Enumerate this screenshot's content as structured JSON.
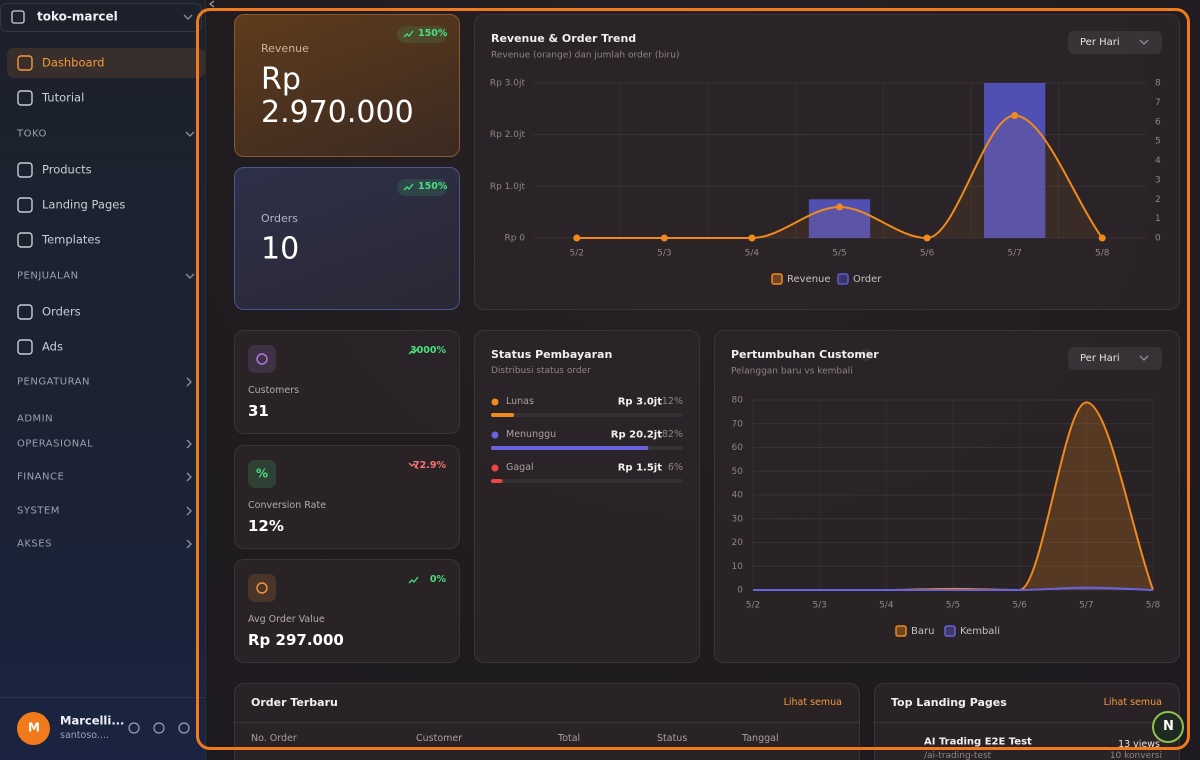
{
  "sidebar": {
    "workspace": "toko-marcel",
    "menu": [
      {
        "label": "Dashboard",
        "active": true
      },
      {
        "label": "Tutorial"
      }
    ],
    "groups": [
      {
        "title": "TOKO",
        "items": [
          "Products",
          "Landing Pages",
          "Templates"
        ]
      },
      {
        "title": "PENJUALAN",
        "items": [
          "Orders",
          "Ads"
        ]
      },
      {
        "title": "PENGATURAN"
      },
      {
        "title": "ADMIN"
      },
      {
        "title": "OPERASIONAL"
      },
      {
        "title": "FINANCE"
      },
      {
        "title": "SYSTEM"
      },
      {
        "title": "AKSES"
      }
    ],
    "user": {
      "initial": "M",
      "name": "Marcelli...",
      "email": "santoso...."
    }
  },
  "stats": {
    "revenue": {
      "label": "Revenue",
      "value": "Rp 2.970.000",
      "change": "150%"
    },
    "orders": {
      "label": "Orders",
      "value": "10",
      "change": "150%"
    },
    "kpis": [
      {
        "label": "Customers",
        "value": "31",
        "change": "3000%",
        "trend": "up",
        "color": "#b07ae6"
      },
      {
        "label": "Conversion Rate",
        "value": "12%",
        "change": "72.9%",
        "trend": "down",
        "color": "#4ade80",
        "icon": "%"
      },
      {
        "label": "Avg Order Value",
        "value": "Rp 297.000",
        "change": "0%",
        "trend": "up",
        "color": "#f59a3c"
      }
    ]
  },
  "chart_data": [
    {
      "type": "combo",
      "title": "Revenue & Order Trend",
      "subtitle": "Revenue (orange) dan jumlah order (biru)",
      "control": "Per Hari",
      "categories": [
        "5/2",
        "5/3",
        "5/4",
        "5/5",
        "5/6",
        "5/7",
        "5/8"
      ],
      "series": [
        {
          "name": "Revenue",
          "type": "line",
          "color": "#f08a1c",
          "values": [
            0,
            0,
            0,
            0.6,
            0,
            2.37,
            0
          ]
        },
        {
          "name": "Order",
          "type": "bar",
          "color": "#5a5bd6",
          "axis": "y2",
          "values": [
            0,
            0,
            0,
            2,
            0,
            8,
            0
          ]
        }
      ],
      "ylim": [
        0,
        3
      ],
      "yticks": [
        {
          "value": 0,
          "label": "Rp 0"
        },
        {
          "value": 1,
          "label": "Rp 1.0jt"
        },
        {
          "value": 2,
          "label": "Rp 2.0jt"
        },
        {
          "value": 3,
          "label": "Rp 3.0jt"
        }
      ],
      "y2lim": [
        0,
        8
      ],
      "y2ticks": [
        0,
        1,
        2,
        3,
        4,
        5,
        6,
        7,
        8
      ],
      "grid": true,
      "legend": "bottom"
    },
    {
      "type": "area",
      "title": "Pertumbuhan Customer",
      "subtitle": "Pelanggan baru vs kembali",
      "control": "Per Hari",
      "categories": [
        "5/2",
        "5/3",
        "5/4",
        "5/5",
        "5/6",
        "5/7",
        "5/8"
      ],
      "series": [
        {
          "name": "Baru",
          "color": "#f08a1c",
          "values": [
            0,
            0,
            0,
            0.5,
            0,
            79,
            0
          ]
        },
        {
          "name": "Kembali",
          "color": "#6a63e0",
          "values": [
            0,
            0,
            0,
            0,
            0,
            1,
            0
          ]
        }
      ],
      "ylim": [
        0,
        80
      ],
      "yticks": [
        0,
        10,
        20,
        30,
        40,
        50,
        60,
        70,
        80
      ],
      "grid": true,
      "legend": "bottom"
    }
  ],
  "payment_status": {
    "title": "Status Pembayaran",
    "subtitle": "Distribusi status order",
    "items": [
      {
        "name": "Lunas",
        "amount": "Rp 3.0jt",
        "percent": 12,
        "percent_label": "12%",
        "color": "#f08a1c"
      },
      {
        "name": "Menunggu",
        "amount": "Rp 20.2jt",
        "percent": 82,
        "percent_label": "82%",
        "color": "#6a63e0"
      },
      {
        "name": "Gagal",
        "amount": "Rp 1.5jt",
        "percent": 6,
        "percent_label": "6%",
        "color": "#ef4444"
      }
    ]
  },
  "recent_orders": {
    "title": "Order Terbaru",
    "link": "Lihat semua",
    "columns": [
      "No. Order",
      "Customer",
      "Total",
      "Status",
      "Tanggal"
    ]
  },
  "top_landing_pages": {
    "title": "Top Landing Pages",
    "link": "Lihat semua",
    "pages": [
      {
        "name": "AI Trading E2E Test",
        "path": "/ai-trading-test",
        "views": "13 views",
        "conversions": "10 konversi"
      }
    ]
  },
  "fab": "N"
}
